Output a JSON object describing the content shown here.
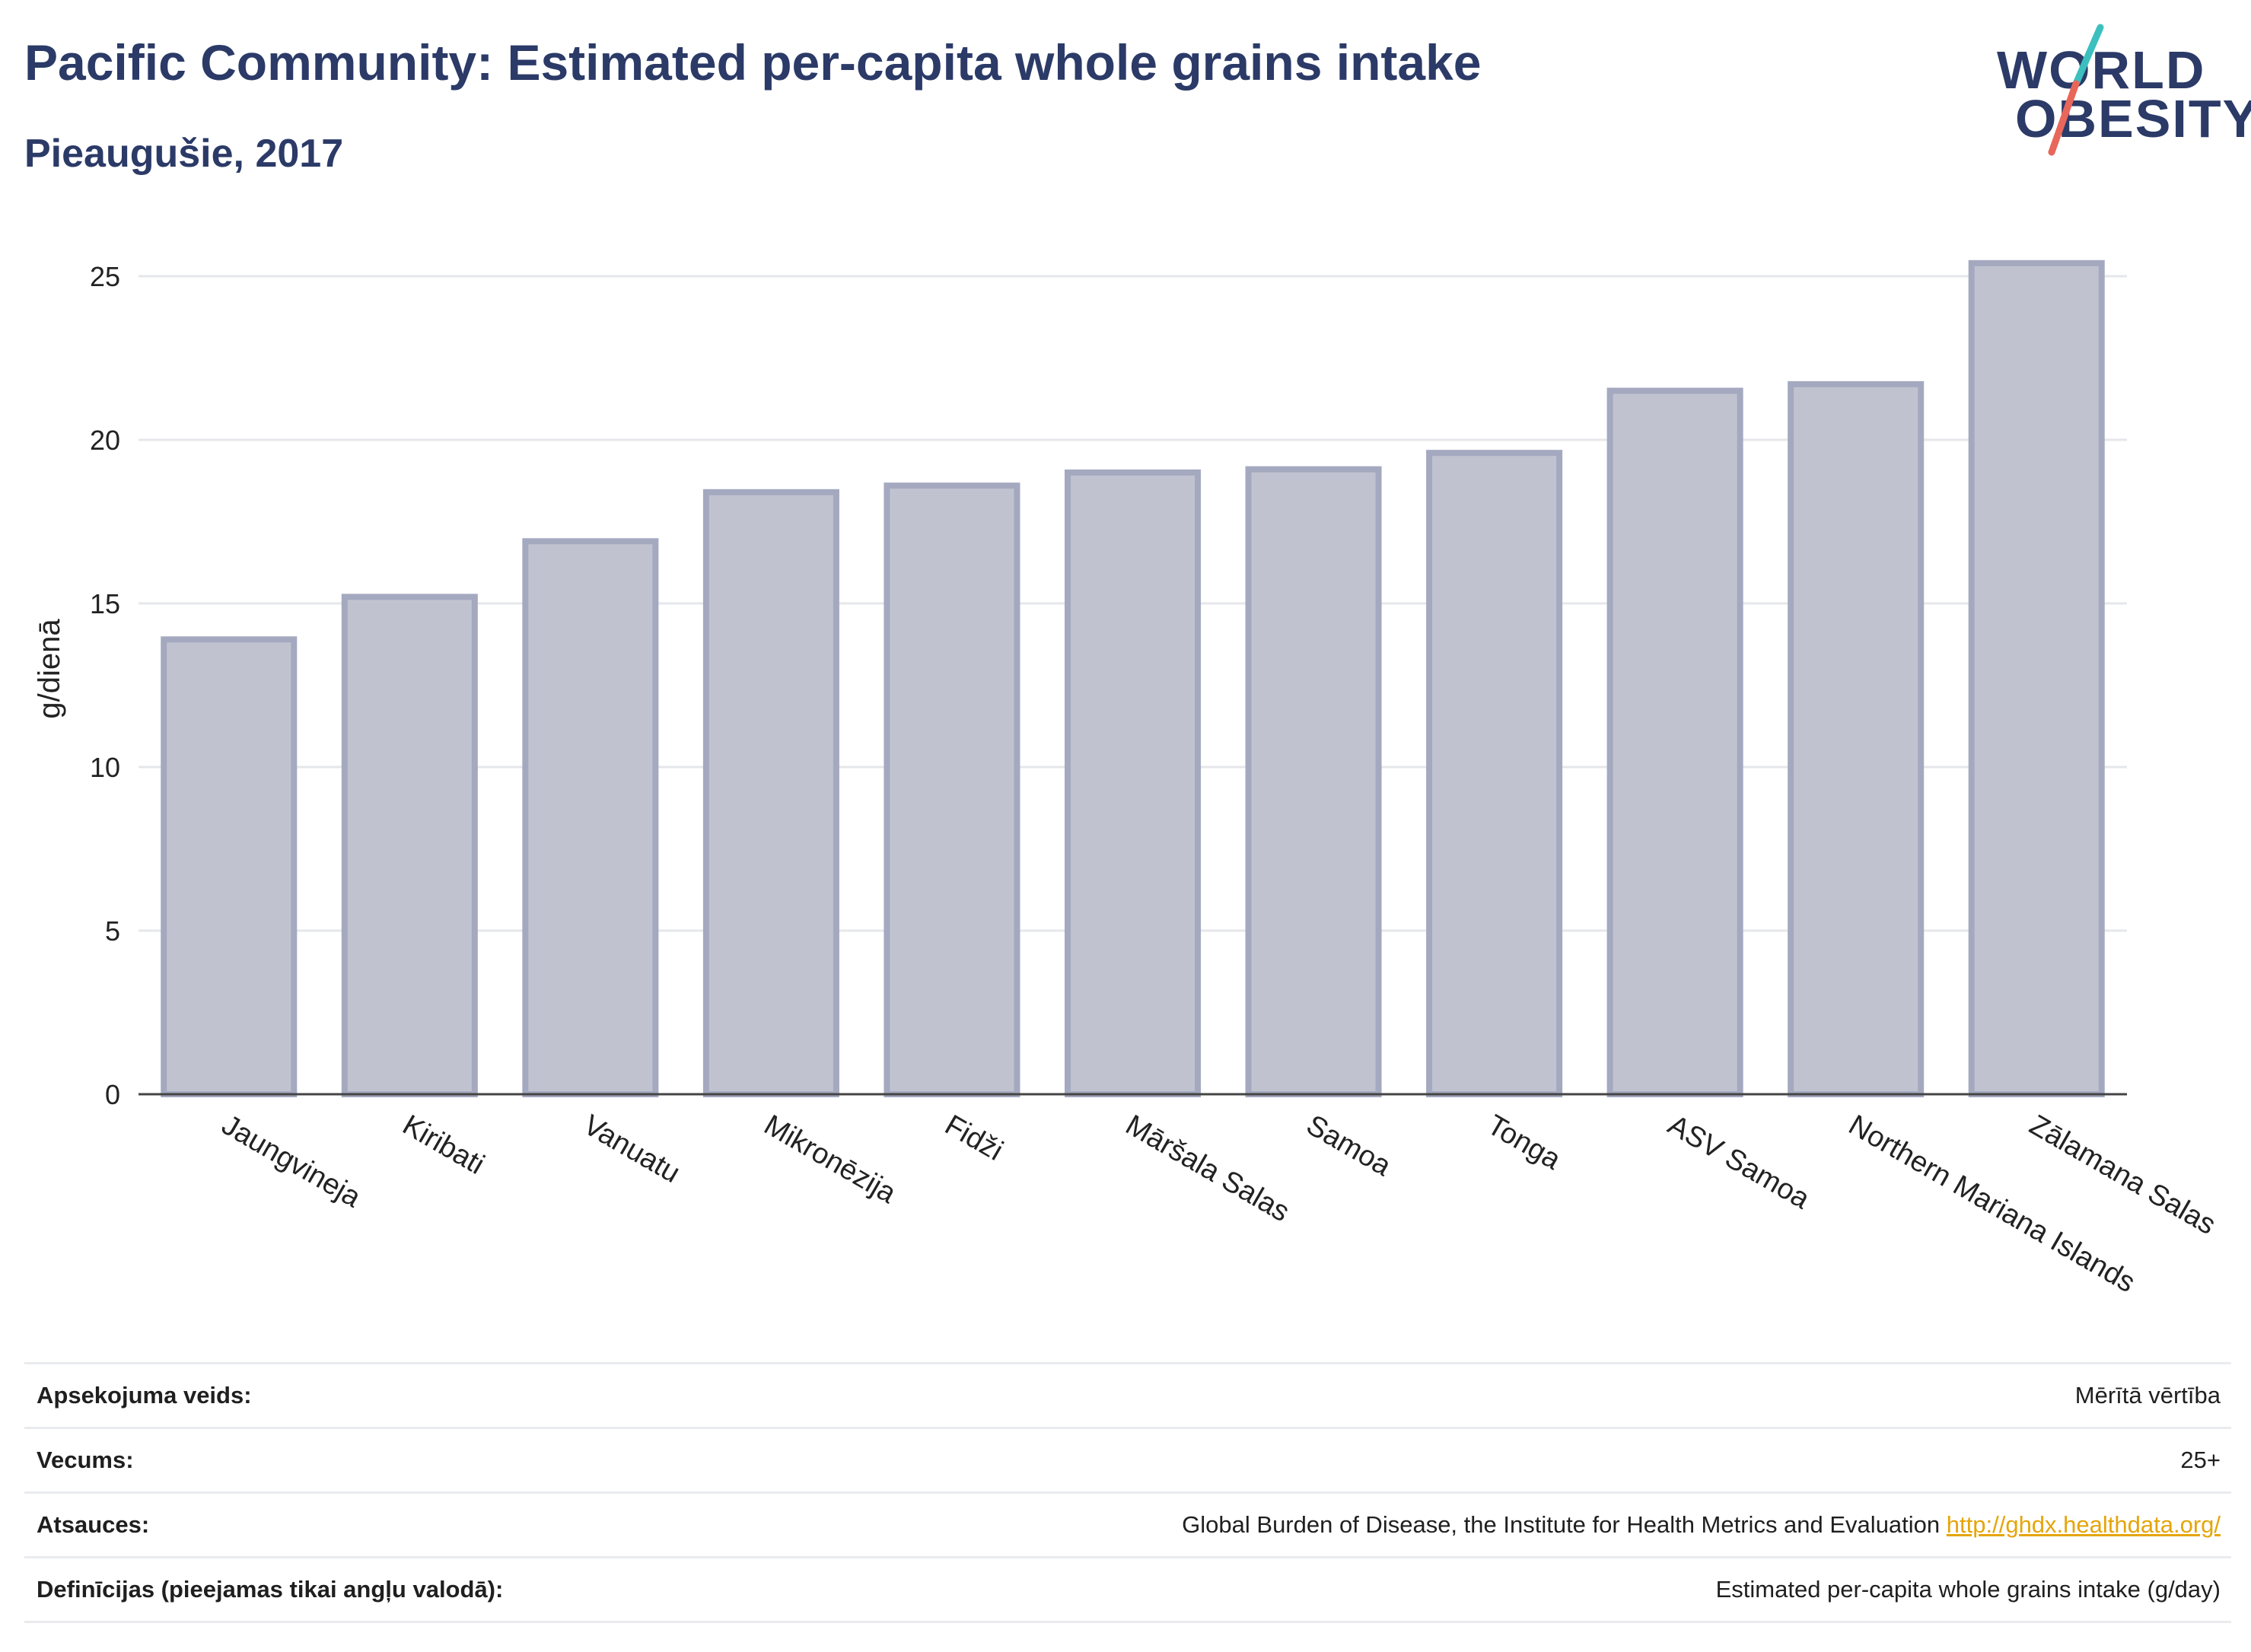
{
  "header": {
    "title": "Pacific Community: Estimated per-capita whole grains intake",
    "subtitle": "Pieaugušie, 2017"
  },
  "logo": {
    "line1": "WORLD",
    "line2": "OBESITY",
    "accent_colors": [
      "#3cbfbf",
      "#e8675a"
    ]
  },
  "chart_data": {
    "type": "bar",
    "categories": [
      "Jaungvineja",
      "Kiribati",
      "Vanuatu",
      "Mikronēzija",
      "Fidži",
      "Māršala Salas",
      "Samoa",
      "Tonga",
      "ASV Samoa",
      "Northern Mariana Islands",
      "Zālamana Salas"
    ],
    "values": [
      13.9,
      15.2,
      16.9,
      18.4,
      18.6,
      19.0,
      19.1,
      19.6,
      21.5,
      21.7,
      25.4
    ],
    "ylabel": "g/dienā",
    "ylim": [
      0,
      26
    ],
    "yticks": [
      0,
      5,
      10,
      15,
      20,
      25
    ],
    "grid": true,
    "bar_fill": "#c0c3cf",
    "bar_stroke": "#a4a9c0"
  },
  "meta": {
    "rows": [
      {
        "label": "Apsekojuma veids:",
        "value": "Mērītā vērtība"
      },
      {
        "label": "Vecums:",
        "value": "25+"
      },
      {
        "label": "Atsauces:",
        "value": "Global Burden of Disease, the Institute for Health Metrics and Evaluation",
        "link": "http://ghdx.healthdata.org/"
      },
      {
        "label": "Definīcijas (pieejamas tikai angļu valodā):",
        "value": "Estimated per-capita whole grains intake (g/day)"
      }
    ]
  }
}
